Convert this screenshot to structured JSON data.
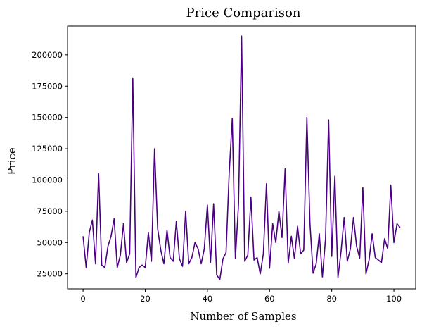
{
  "chart_data": {
    "type": "line",
    "title": "Price Comparison",
    "xlabel": "Number of Samples",
    "ylabel": "Price",
    "xlim": [
      -5,
      107
    ],
    "ylim": [
      13000,
      223000
    ],
    "xticks": [
      0,
      20,
      40,
      60,
      80,
      100
    ],
    "yticks": [
      25000,
      50000,
      75000,
      100000,
      125000,
      150000,
      175000,
      200000
    ],
    "grid": false,
    "line_color": "#4b0082",
    "series": [
      {
        "x": [
          0,
          1,
          2,
          3,
          4,
          5,
          6,
          7,
          8,
          9,
          10,
          11,
          12,
          13,
          14,
          15,
          16,
          17,
          18,
          19,
          20,
          21,
          22,
          23,
          24,
          25,
          26,
          27,
          28,
          29,
          30,
          31,
          32,
          33,
          34,
          35,
          36,
          37,
          38,
          39,
          40,
          41,
          42,
          43,
          44,
          45,
          46,
          47,
          48,
          49,
          50,
          51,
          52,
          53,
          54,
          55,
          56,
          57,
          58,
          59,
          60,
          61,
          62,
          63,
          64,
          65,
          66,
          67,
          68,
          69,
          70,
          71,
          72,
          73,
          74,
          75,
          76,
          77,
          78,
          79,
          80,
          81,
          82,
          83,
          84,
          85,
          86,
          87,
          88,
          89,
          90,
          91,
          92,
          93,
          94,
          95,
          96,
          97,
          98,
          99,
          100,
          101,
          102
        ],
        "values": [
          55000,
          30000,
          58000,
          68000,
          33000,
          105000,
          32000,
          30000,
          47000,
          55000,
          69000,
          30000,
          40000,
          65000,
          34000,
          41000,
          181000,
          22000,
          30000,
          32000,
          30000,
          58000,
          35000,
          125000,
          61000,
          44000,
          33000,
          60000,
          38000,
          35000,
          67000,
          37000,
          31000,
          75000,
          33000,
          38000,
          50000,
          45000,
          33000,
          45000,
          80000,
          34000,
          81000,
          24000,
          20500,
          37000,
          42000,
          105000,
          149000,
          37000,
          80000,
          215000,
          35000,
          40000,
          86000,
          36000,
          38000,
          25000,
          41000,
          97000,
          29500,
          65000,
          50000,
          75000,
          54000,
          109000,
          33500,
          55000,
          37000,
          63000,
          41000,
          44000,
          150000,
          65000,
          25500,
          33000,
          57000,
          22500,
          53000,
          148000,
          39000,
          103000,
          22000,
          43000,
          70000,
          35000,
          45000,
          70000,
          47000,
          37500,
          94000,
          25000,
          36000,
          57000,
          38000,
          36000,
          34000,
          53000,
          45000,
          96000,
          50000,
          65000,
          62000
        ]
      }
    ]
  }
}
